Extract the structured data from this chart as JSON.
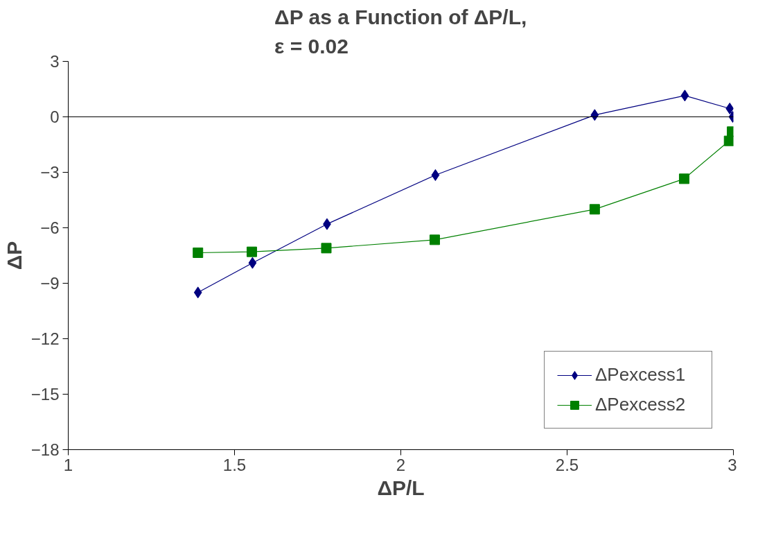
{
  "chart_data": {
    "type": "line",
    "title": "ΔP as a Function of ΔP/L,\nε = 0.02",
    "xlabel": "ΔP/L",
    "ylabel": "ΔP",
    "series": [
      {
        "name": "ΔPexcess1",
        "color": "#000080",
        "marker": "diamond",
        "x": [
          1.39,
          1.554,
          1.778,
          2.104,
          2.583,
          2.854,
          2.989,
          2.998
        ],
        "values": [
          -9.5,
          -7.9,
          -5.8,
          -3.15,
          0.1,
          1.15,
          0.45,
          0
        ]
      },
      {
        "name": "ΔPexcess2",
        "color": "#008000",
        "marker": "square",
        "x": [
          1.39,
          1.552,
          1.776,
          2.102,
          2.583,
          2.852,
          2.987,
          2.996
        ],
        "values": [
          -7.35,
          -7.3,
          -7.1,
          -6.65,
          -5.0,
          -3.35,
          -1.3,
          -0.8
        ]
      }
    ],
    "xlim": [
      1,
      3
    ],
    "xticks": [
      1,
      1.5,
      2,
      2.5,
      3
    ],
    "ylim": [
      -18,
      3
    ],
    "yticks": [
      -18,
      -15,
      -12,
      -9,
      -6,
      -3,
      0,
      3
    ],
    "ref_lines": [
      {
        "axis": "y",
        "value": 0,
        "color": "#000000"
      }
    ],
    "grid": false,
    "legend": "bottom right",
    "line_style": "solid"
  }
}
